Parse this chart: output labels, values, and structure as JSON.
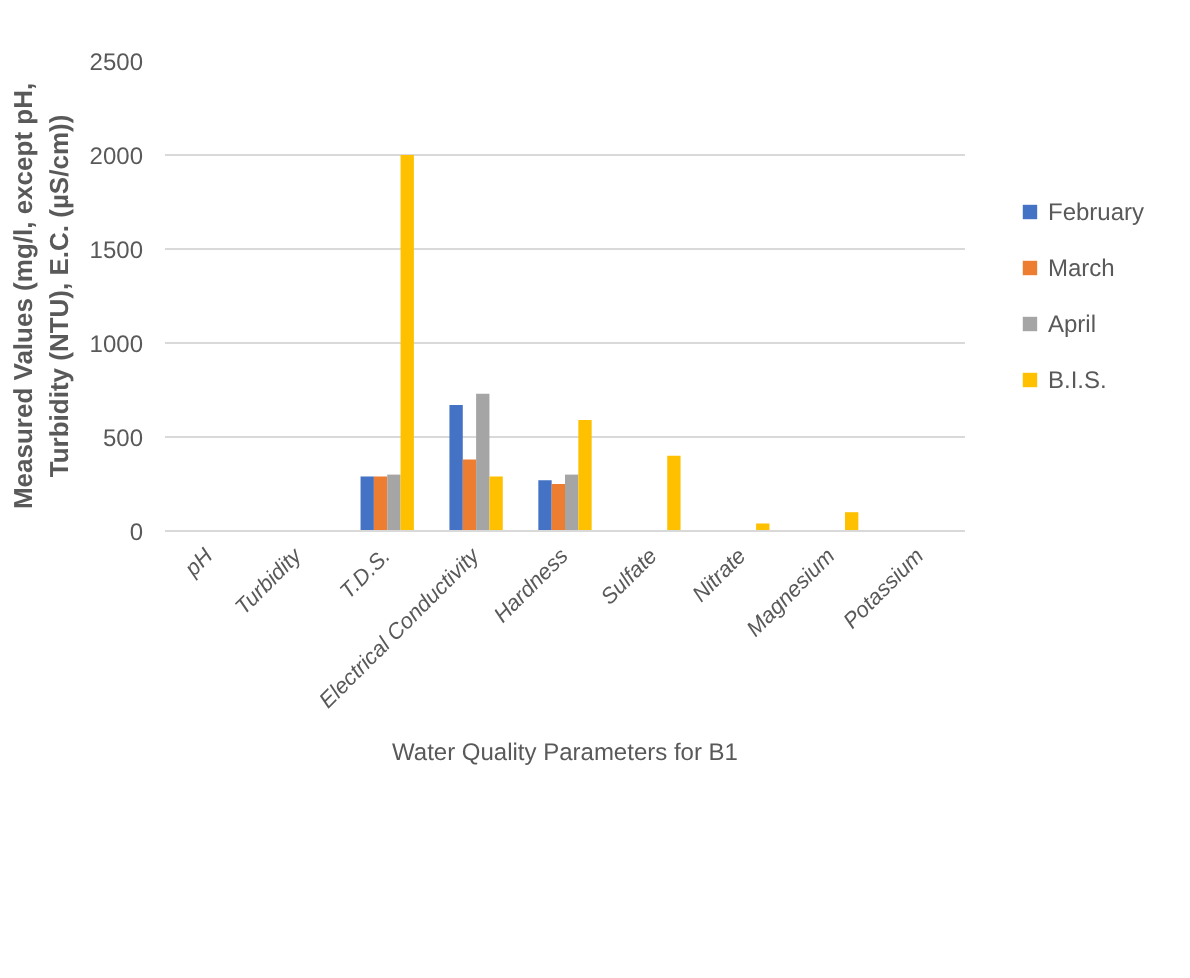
{
  "chart_data": {
    "type": "bar",
    "xlabel": "Water Quality Parameters for B1",
    "ylabel": "Measured Values (mg/l, except pH,\nTurbidity (NTU), E.C. (µS/cm))",
    "categories": [
      "pH",
      "Turbidity",
      "T.D.S.",
      "Electrical Conductivity",
      "Hardness",
      "Sulfate",
      "Nitrate",
      "Magnesium",
      "Potassium"
    ],
    "series": [
      {
        "name": "February",
        "color": "#4472c4",
        "values": [
          null,
          null,
          290,
          670,
          270,
          null,
          null,
          null,
          null
        ]
      },
      {
        "name": "March",
        "color": "#ed7d31",
        "values": [
          null,
          null,
          290,
          380,
          250,
          null,
          null,
          null,
          null
        ]
      },
      {
        "name": "April",
        "color": "#a5a5a5",
        "values": [
          null,
          null,
          300,
          730,
          300,
          null,
          null,
          null,
          null
        ]
      },
      {
        "name": "B.I.S.",
        "color": "#ffc000",
        "values": [
          null,
          null,
          2000,
          290,
          590,
          400,
          40,
          100,
          null
        ]
      }
    ],
    "ylim": [
      0,
      2500
    ],
    "yticks": [
      0,
      500,
      1000,
      1500,
      2000,
      2500
    ],
    "grid": "y",
    "legend": "right"
  }
}
